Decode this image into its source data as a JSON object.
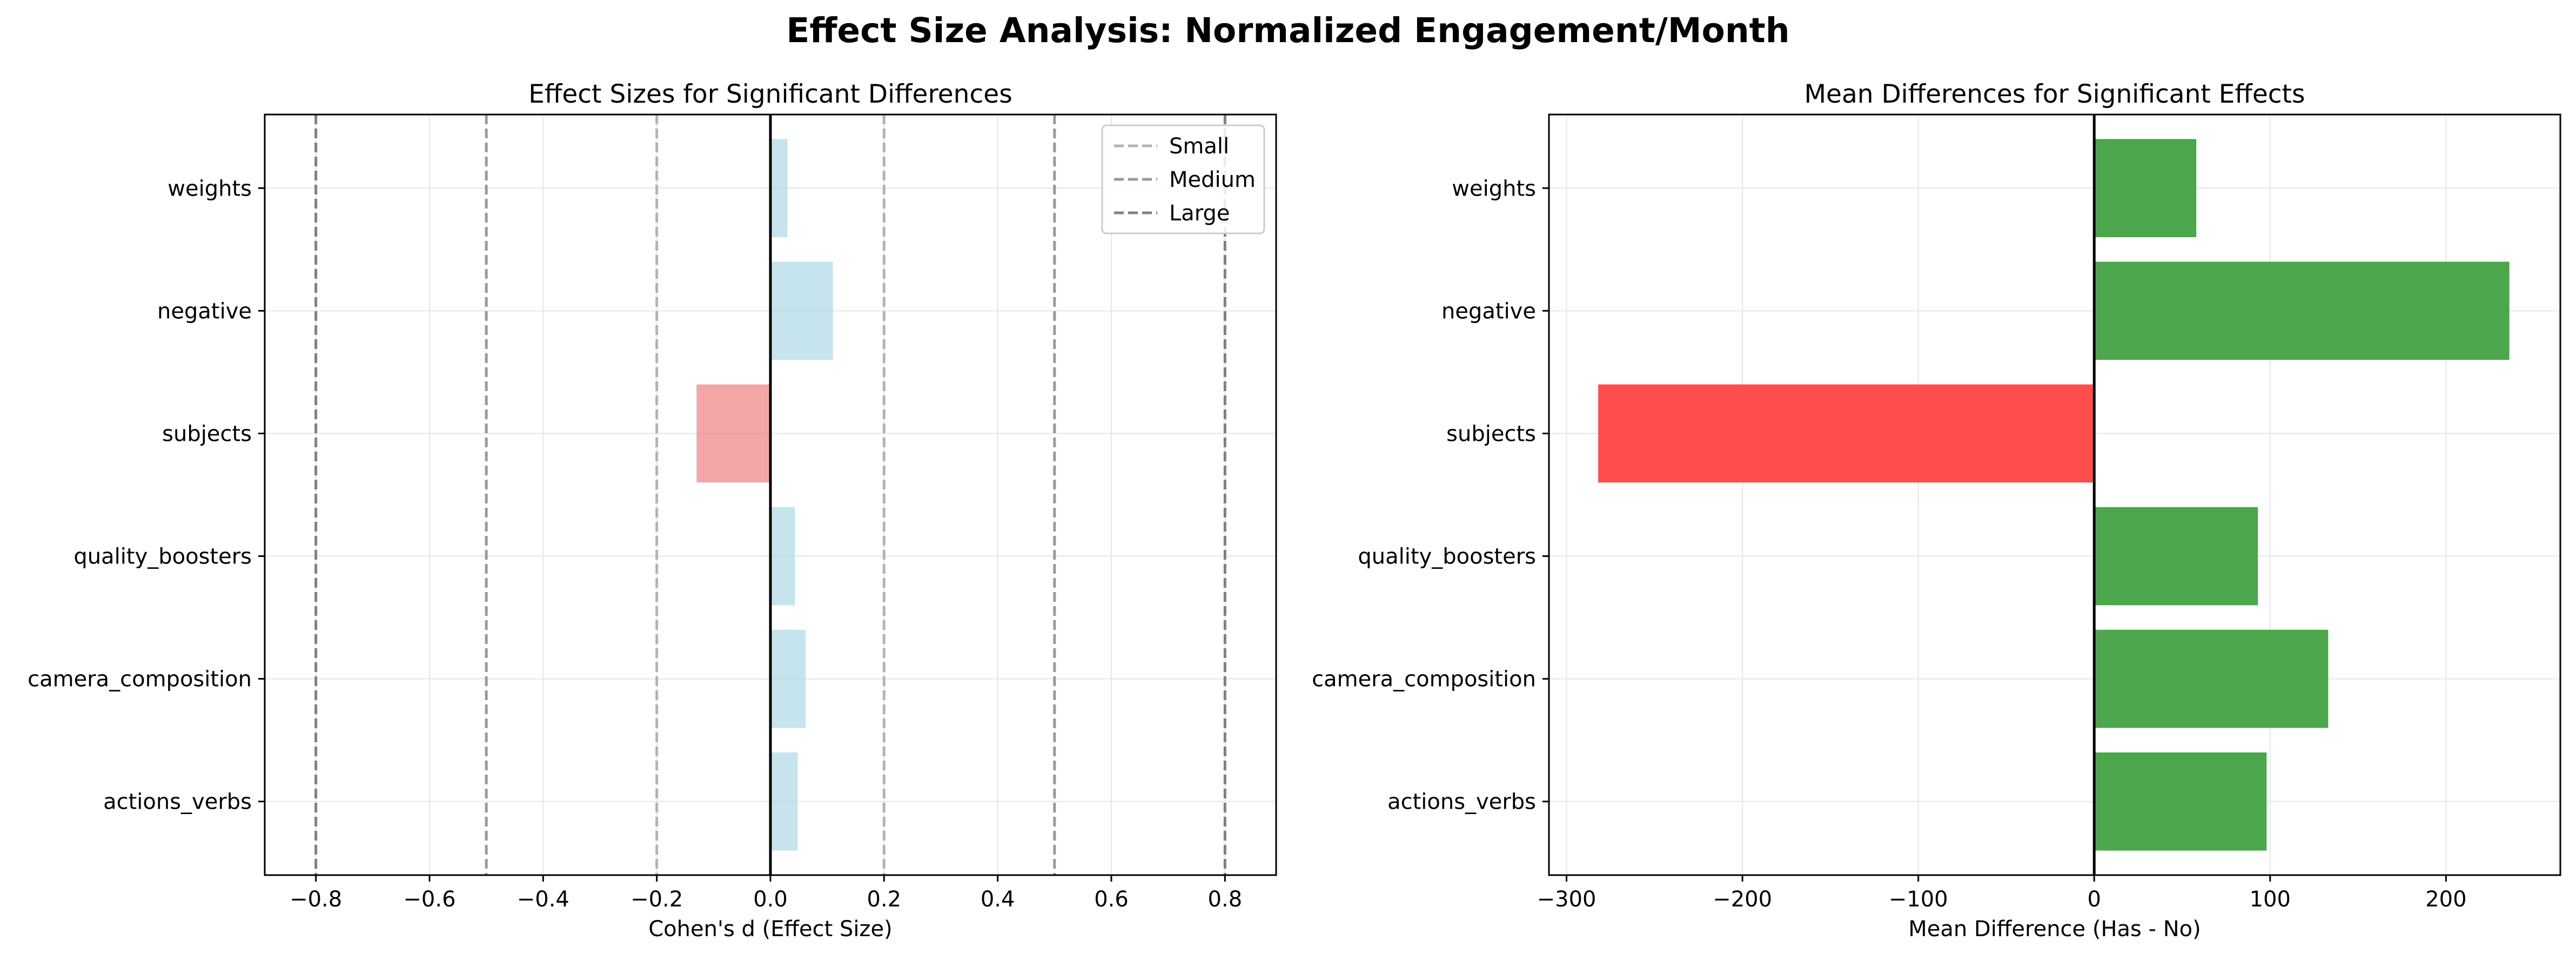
{
  "figure": {
    "title": "Effect Size Analysis: Normalized Engagement/Month"
  },
  "chart_data": [
    {
      "type": "bar",
      "orientation": "horizontal",
      "title": "Effect Sizes for Significant Differences",
      "xlabel": "Cohen's d (Effect Size)",
      "ylabel": "",
      "categories": [
        "actions_verbs",
        "camera_composition",
        "quality_boosters",
        "subjects",
        "negative",
        "weights"
      ],
      "values": [
        0.048,
        0.062,
        0.043,
        -0.13,
        0.11,
        0.03
      ],
      "xlim": [
        -0.89,
        0.89
      ],
      "xticks": [
        -0.8,
        -0.6,
        -0.4,
        -0.2,
        0.0,
        0.2,
        0.4,
        0.6,
        0.8
      ],
      "xtick_labels": [
        "−0.8",
        "−0.6",
        "−0.4",
        "−0.2",
        "0.0",
        "0.2",
        "0.4",
        "0.6",
        "0.8"
      ],
      "grid": true,
      "colors": {
        "positive": "#add8e6",
        "negative": "#f08080",
        "zero_line": "#000000"
      },
      "reference_lines": [
        {
          "label": "Small",
          "values": [
            -0.2,
            0.2
          ],
          "color": "#b3b3b3"
        },
        {
          "label": "Medium",
          "values": [
            -0.5,
            0.5
          ],
          "color": "#999999"
        },
        {
          "label": "Large",
          "values": [
            -0.8,
            0.8
          ],
          "color": "#808080"
        }
      ],
      "legend": {
        "position": "upper-right",
        "entries": [
          "Small",
          "Medium",
          "Large"
        ]
      }
    },
    {
      "type": "bar",
      "orientation": "horizontal",
      "title": "Mean Differences for Significant Effects",
      "xlabel": "Mean Difference (Has - No)",
      "ylabel": "",
      "categories": [
        "actions_verbs",
        "camera_composition",
        "quality_boosters",
        "subjects",
        "negative",
        "weights"
      ],
      "values": [
        98,
        133,
        93,
        -282,
        236,
        58
      ],
      "xlim": [
        -310,
        265
      ],
      "xticks": [
        -300,
        -200,
        -100,
        0,
        100,
        200
      ],
      "xtick_labels": [
        "−300",
        "−200",
        "−100",
        "0",
        "100",
        "200"
      ],
      "grid": true,
      "colors": {
        "positive": "#4ca64c",
        "negative": "#ff4d4d",
        "zero_line": "#000000"
      }
    }
  ]
}
